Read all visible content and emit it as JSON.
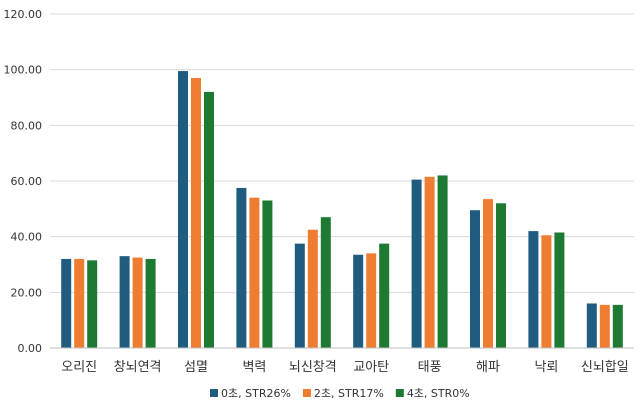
{
  "chart_data": {
    "type": "bar",
    "title": "",
    "xlabel": "",
    "ylabel": "",
    "ylim": [
      0,
      120
    ],
    "yticks": [
      "0.00",
      "20.00",
      "40.00",
      "60.00",
      "80.00",
      "100.00",
      "120.00"
    ],
    "grid": true,
    "legend_position": "bottom",
    "categories": [
      "오리진",
      "창뇌연격",
      "섬멸",
      "벽력",
      "뇌신창격",
      "교아탄",
      "태풍",
      "해파",
      "낙뢰",
      "신뇌합일"
    ],
    "series": [
      {
        "name": "0초, STR26%",
        "color": "#1f5c7f",
        "values": [
          32.0,
          33.0,
          99.5,
          57.5,
          37.5,
          33.5,
          60.5,
          49.5,
          42.0,
          16.0
        ]
      },
      {
        "name": "2초, STR17%",
        "color": "#ee7d31",
        "values": [
          32.0,
          32.5,
          97.0,
          54.0,
          42.5,
          34.0,
          61.5,
          53.5,
          40.5,
          15.5
        ]
      },
      {
        "name": "4초, STR0%",
        "color": "#1e7a33",
        "values": [
          31.5,
          32.0,
          92.0,
          53.0,
          47.0,
          37.5,
          62.0,
          52.0,
          41.5,
          15.5
        ]
      }
    ]
  }
}
